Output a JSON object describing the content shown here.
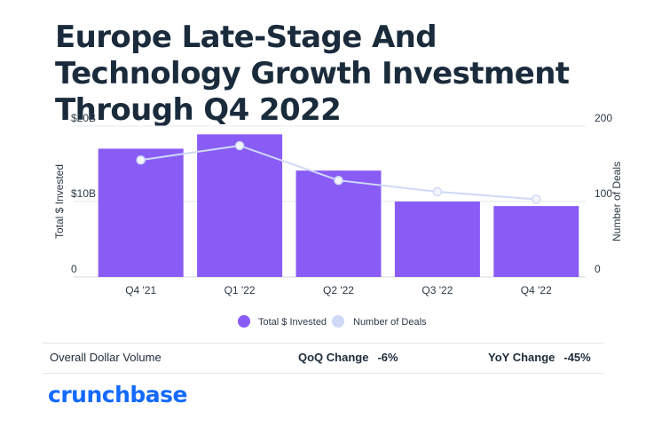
{
  "title": "Europe Late-Stage And Technology Growth Investment Through Q4 2022",
  "chart_data": {
    "type": "bar",
    "categories": [
      "Q4 '21",
      "Q1 '22",
      "Q2 '22",
      "Q3 '22",
      "Q4 '22"
    ],
    "series": [
      {
        "name": "Total $ Invested",
        "kind": "bar",
        "axis": "left",
        "color": "#8a5cf6",
        "values": [
          17.0,
          18.9,
          14.1,
          10.0,
          9.4
        ]
      },
      {
        "name": "Number of Deals",
        "kind": "line",
        "axis": "right",
        "color": "#cfd9f7",
        "values": [
          155,
          174,
          128,
          113,
          103
        ]
      }
    ],
    "ylabel": "Total $ Invested",
    "ylabel_right": "Number of Deals",
    "ylim": [
      0,
      20
    ],
    "ylim_right": [
      0,
      200
    ],
    "yticks_left": [
      "0",
      "$10B",
      "$20B"
    ],
    "yticks_right": [
      "0",
      "100",
      "200"
    ],
    "grid": true,
    "legend_position": "bottom-center"
  },
  "metrics": {
    "label": "Overall Dollar Volume",
    "qoq_label": "QoQ Change",
    "qoq_value": "-6%",
    "yoy_label": "YoY Change",
    "yoy_value": "-45%"
  },
  "brand": "crunchbase"
}
